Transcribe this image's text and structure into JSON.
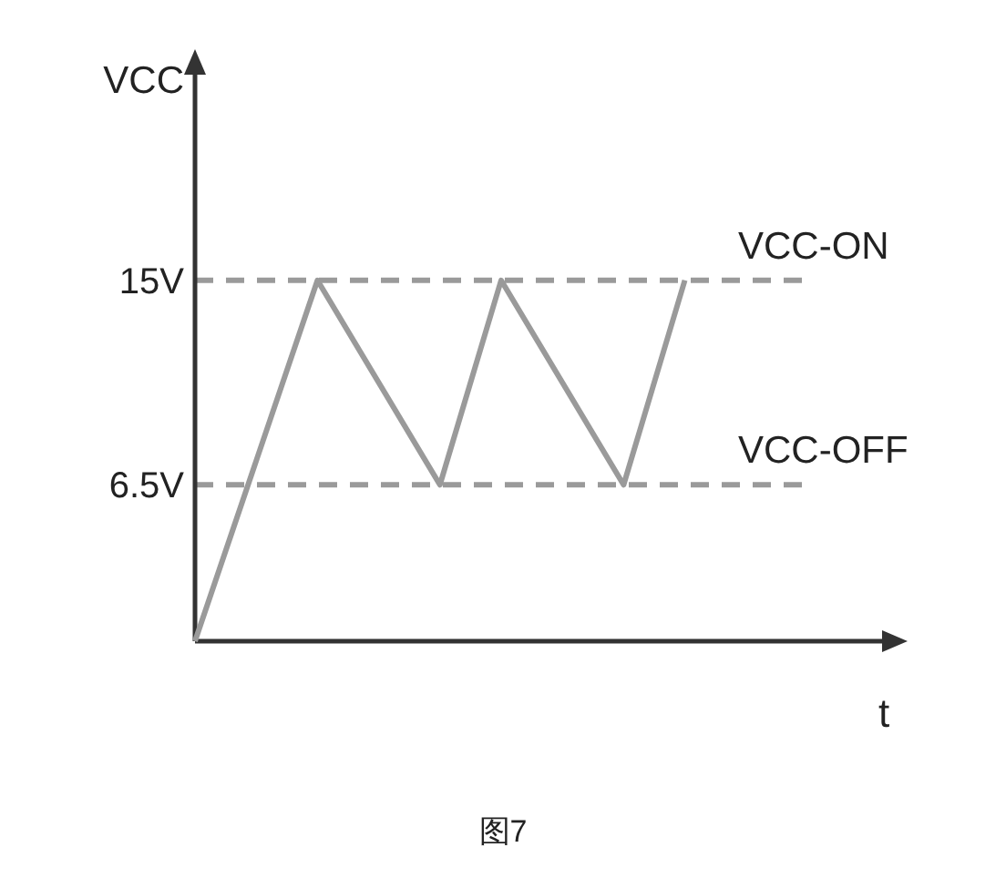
{
  "chart_data": {
    "type": "line",
    "ylabel": "VCC",
    "xlabel": "t",
    "categories": [
      null,
      null,
      null,
      null,
      null,
      null,
      null,
      null,
      null
    ],
    "series": [
      {
        "color": "#9a9a9a",
        "values": [
          0,
          7.5,
          15,
          10.75,
          6.5,
          15,
          10.75,
          6.5,
          15
        ]
      }
    ],
    "ylim": [
      0,
      24
    ],
    "yticks": [
      {
        "value": 6.5,
        "label": "6.5V"
      },
      {
        "value": 15,
        "label": "15V"
      }
    ],
    "tick_labels": "y",
    "line_style": "solid",
    "ref_lines": [
      {
        "axis": "y",
        "value": 15,
        "label": "VCC-ON",
        "color": "#9a9a9a",
        "line_style": "dashed"
      },
      {
        "axis": "y",
        "value": 6.5,
        "label": "VCC-OFF",
        "color": "#9a9a9a",
        "line_style": "dashed"
      }
    ],
    "annotations": [
      "图7"
    ]
  }
}
